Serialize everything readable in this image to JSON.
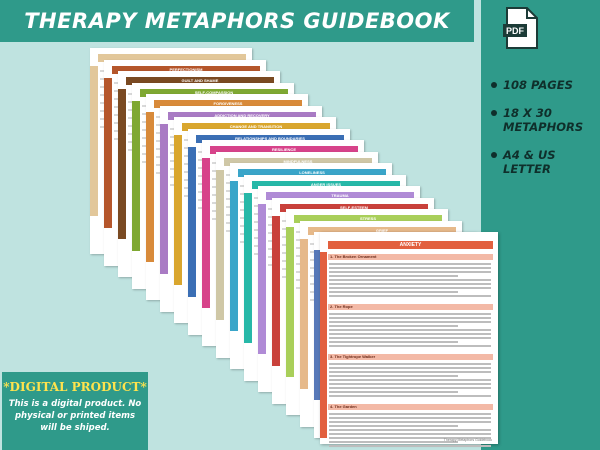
{
  "title": "THERAPY METAPHORS GUIDEBOOK",
  "features": [
    {
      "text": "108 PAGES"
    },
    {
      "text": "18 X 30 METAPHORS"
    },
    {
      "text": "A4 & US LETTER"
    }
  ],
  "pdf_icon": {
    "label": "PDF",
    "icon": "pdf-file-icon"
  },
  "digital": {
    "title": "*DIGITAL PRODUCT*",
    "text": "This is a digital product. No physical or printed items will be shiped."
  },
  "pages": [
    {
      "label": "",
      "color": "#e2c79a"
    },
    {
      "label": "PERFECTIONISM",
      "color": "#b5562b"
    },
    {
      "label": "GUILT AND SHAME",
      "color": "#7a4a22"
    },
    {
      "label": "SELF-COMPASSION",
      "color": "#7fa832"
    },
    {
      "label": "FORGIVENESS",
      "color": "#d88a3a"
    },
    {
      "label": "ADDICTION AND RECOVERY",
      "color": "#a97bc4"
    },
    {
      "label": "CHANGE AND TRANSITION",
      "color": "#d9a62e"
    },
    {
      "label": "RELATIONSHIPS AND BOUNDARIES",
      "color": "#3b6fb5"
    },
    {
      "label": "RESILIENCE",
      "color": "#d7438a"
    },
    {
      "label": "MINDFULNESS",
      "color": "#cfc7a6"
    },
    {
      "label": "LONELINESS",
      "color": "#3aa5c9"
    },
    {
      "label": "ANGER ISSUES",
      "color": "#27b8a8"
    },
    {
      "label": "TRAUMA",
      "color": "#b08bd6"
    },
    {
      "label": "SELF-ESTEEM",
      "color": "#c9413b"
    },
    {
      "label": "STRESS",
      "color": "#a9cf5a"
    },
    {
      "label": "GRIEF",
      "color": "#e6b98a"
    },
    {
      "label": "DEPRESSION",
      "color": "#5778b8"
    }
  ],
  "front_page": {
    "title": "ANXIETY",
    "color": "#e2603f",
    "sections": [
      "1. The Broken Ornament",
      "2. The Rope",
      "3. The Tightrope Walker",
      "4. The Garden"
    ],
    "footer": "Therapy Metaphors Guidebook"
  }
}
